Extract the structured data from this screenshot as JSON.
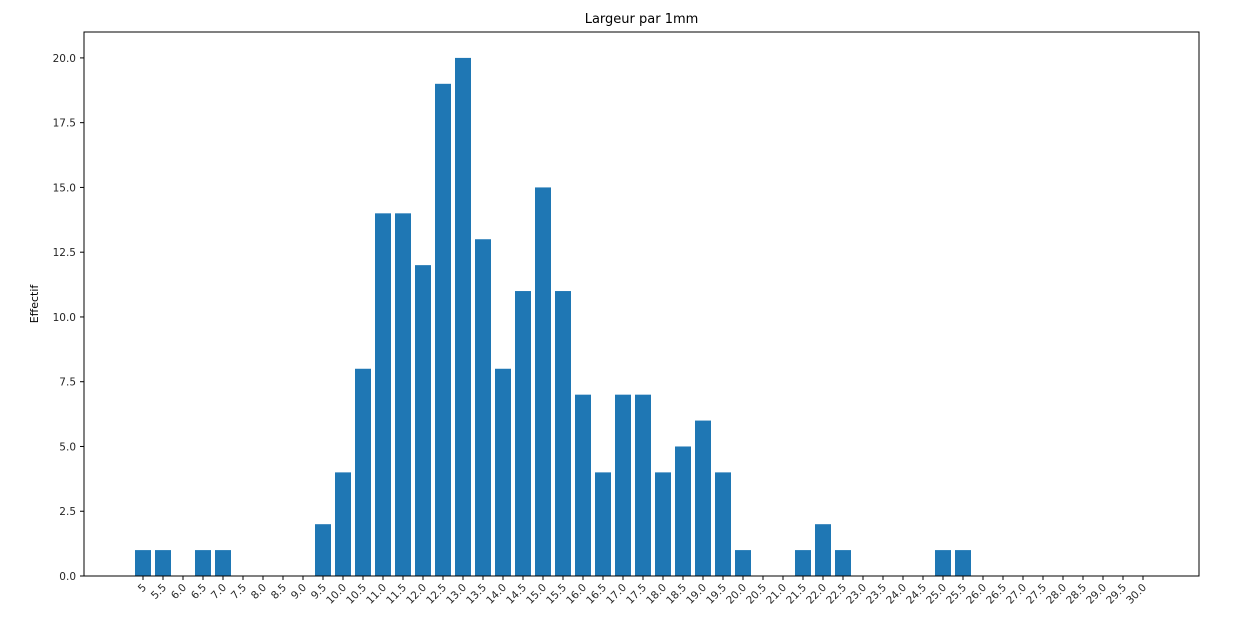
{
  "chart_data": {
    "type": "bar",
    "title": "Largeur par 1mm",
    "xlabel": "",
    "ylabel": "Effectif",
    "ylim": [
      0,
      21
    ],
    "yticks": [
      "0.0",
      "2.5",
      "5.0",
      "7.5",
      "10.0",
      "12.5",
      "15.0",
      "17.5",
      "20.0"
    ],
    "categories": [
      "5",
      "5.5",
      "6.0",
      "6.5",
      "7.0",
      "7.5",
      "8.0",
      "8.5",
      "9.0",
      "9.5",
      "10.0",
      "10.5",
      "11.0",
      "11.5",
      "12.0",
      "12.5",
      "13.0",
      "13.5",
      "14.0",
      "14.5",
      "15.0",
      "15.5",
      "16.0",
      "16.5",
      "17.0",
      "17.5",
      "18.0",
      "18.5",
      "19.0",
      "19.5",
      "20.0",
      "20.5",
      "21.0",
      "21.5",
      "22.0",
      "22.5",
      "23.0",
      "23.5",
      "24.0",
      "24.5",
      "25.0",
      "25.5",
      "26.0",
      "26.5",
      "27.0",
      "27.5",
      "28.0",
      "28.5",
      "29.0",
      "29.5",
      "30.0"
    ],
    "values": [
      1,
      1,
      0,
      1,
      1,
      0,
      0,
      0,
      0,
      2,
      4,
      8,
      14,
      14,
      12,
      19,
      20,
      13,
      8,
      11,
      15,
      11,
      7,
      4,
      7,
      7,
      4,
      5,
      6,
      4,
      1,
      0,
      0,
      1,
      2,
      1,
      0,
      0,
      0,
      0,
      1,
      1,
      0,
      0,
      0,
      0,
      0,
      0,
      0,
      0,
      0
    ],
    "bar_color": "#1f77b4",
    "grid": false,
    "legend": "none"
  }
}
